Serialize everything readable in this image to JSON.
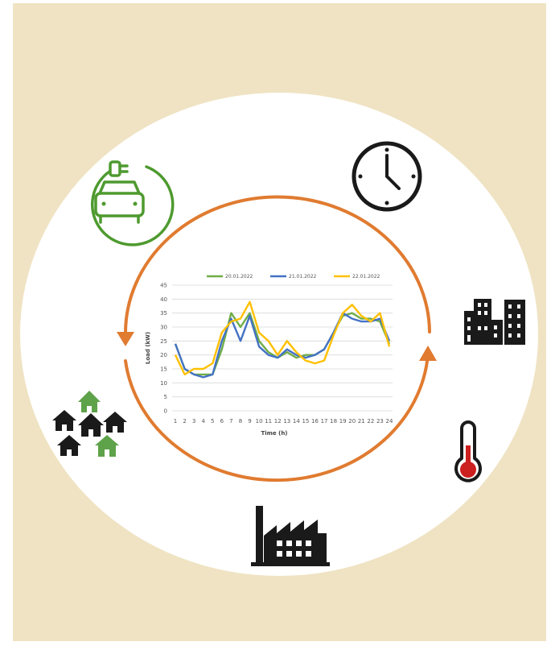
{
  "chart_data": {
    "type": "line",
    "title": "",
    "xlabel": "Time (h)",
    "ylabel": "Load (kW)",
    "x": [
      1,
      2,
      3,
      4,
      5,
      6,
      7,
      8,
      9,
      10,
      11,
      12,
      13,
      14,
      15,
      16,
      17,
      18,
      19,
      20,
      21,
      22,
      23,
      24
    ],
    "x_tick_labels": [
      "1",
      "2",
      "3",
      "4",
      "5",
      "6",
      "7",
      "8",
      "9",
      "10",
      "11",
      "12",
      "13",
      "14",
      "15",
      "16",
      "17",
      "18",
      "19",
      "20",
      "21",
      "22",
      "23",
      "24"
    ],
    "ylim": [
      0,
      45
    ],
    "y_ticks": [
      0,
      5,
      10,
      15,
      20,
      25,
      30,
      35,
      40,
      45
    ],
    "grid": true,
    "legend_position": "top",
    "series": [
      {
        "name": "20.01.2022",
        "color": "#70ad47",
        "values": [
          24,
          15,
          13,
          13,
          13,
          22,
          35,
          30,
          35,
          25,
          21,
          19,
          21,
          19,
          20,
          20,
          22,
          28,
          34,
          35,
          33,
          33,
          32,
          24
        ]
      },
      {
        "name": "21.01.2022",
        "color": "#4472c4",
        "values": [
          24,
          15,
          13,
          12,
          13,
          25,
          33,
          25,
          34,
          23,
          20,
          19,
          22,
          20,
          19,
          20,
          22,
          28,
          35,
          33,
          32,
          32,
          33,
          25
        ]
      },
      {
        "name": "22.01.2022",
        "color": "#ffc000",
        "values": [
          20,
          13,
          15,
          15,
          17,
          28,
          32,
          33,
          39,
          28,
          25,
          20,
          25,
          21,
          18,
          17,
          18,
          27,
          35,
          38,
          34,
          32,
          35,
          23
        ]
      }
    ]
  },
  "colors": {
    "background": "#efe3c3",
    "circle": "#ffffff",
    "cycle_arrow": "#e07b30",
    "ev_icon": "#4e9a2f",
    "house_green": "#5ea24a",
    "dark_icon": "#1a1a1a",
    "thermometer_bulb": "#cc1f1f"
  },
  "icons": [
    "ev-charging-icon",
    "clock-icon",
    "city-buildings-icon",
    "thermometer-icon",
    "factory-icon",
    "houses-icon"
  ]
}
